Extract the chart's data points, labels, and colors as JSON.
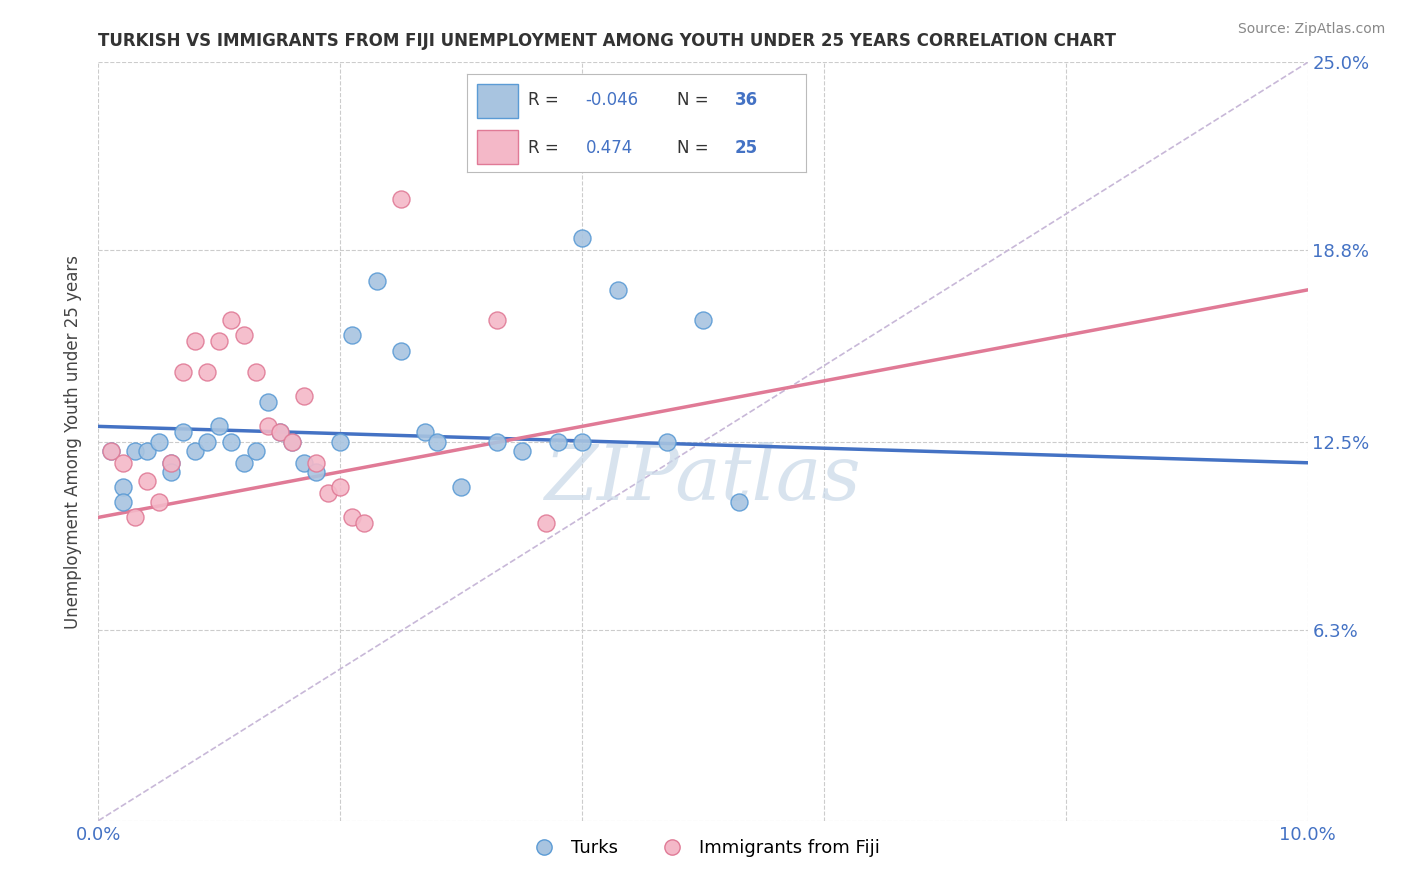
{
  "title": "TURKISH VS IMMIGRANTS FROM FIJI UNEMPLOYMENT AMONG YOUTH UNDER 25 YEARS CORRELATION CHART",
  "source": "Source: ZipAtlas.com",
  "ylabel": "Unemployment Among Youth under 25 years",
  "xlim": [
    0.0,
    0.1
  ],
  "ylim": [
    0.0,
    0.25
  ],
  "xtick_positions": [
    0.0,
    0.02,
    0.04,
    0.06,
    0.08,
    0.1
  ],
  "xtick_labels": [
    "0.0%",
    "",
    "",
    "",
    "",
    "10.0%"
  ],
  "ytick_positions": [
    0.0,
    0.063,
    0.125,
    0.188,
    0.25
  ],
  "ytick_labels": [
    "",
    "6.3%",
    "12.5%",
    "18.8%",
    "25.0%"
  ],
  "turks_R": "-0.046",
  "turks_N": "36",
  "fiji_R": "0.474",
  "fiji_N": "25",
  "turks_color": "#a8c4e0",
  "fiji_color": "#f4b8c8",
  "turks_edge_color": "#5b9bd5",
  "fiji_edge_color": "#e07a96",
  "turks_line_color": "#4472c4",
  "fiji_line_color": "#e07a96",
  "diagonal_color": "#c8b8d8",
  "watermark": "ZIPatlas",
  "turks_scatter": [
    [
      0.001,
      0.122
    ],
    [
      0.002,
      0.11
    ],
    [
      0.002,
      0.105
    ],
    [
      0.003,
      0.122
    ],
    [
      0.004,
      0.122
    ],
    [
      0.005,
      0.125
    ],
    [
      0.006,
      0.118
    ],
    [
      0.006,
      0.115
    ],
    [
      0.007,
      0.128
    ],
    [
      0.008,
      0.122
    ],
    [
      0.009,
      0.125
    ],
    [
      0.01,
      0.13
    ],
    [
      0.011,
      0.125
    ],
    [
      0.012,
      0.118
    ],
    [
      0.013,
      0.122
    ],
    [
      0.014,
      0.138
    ],
    [
      0.015,
      0.128
    ],
    [
      0.016,
      0.125
    ],
    [
      0.017,
      0.118
    ],
    [
      0.018,
      0.115
    ],
    [
      0.02,
      0.125
    ],
    [
      0.021,
      0.16
    ],
    [
      0.023,
      0.178
    ],
    [
      0.025,
      0.155
    ],
    [
      0.027,
      0.128
    ],
    [
      0.028,
      0.125
    ],
    [
      0.03,
      0.11
    ],
    [
      0.033,
      0.125
    ],
    [
      0.035,
      0.122
    ],
    [
      0.038,
      0.125
    ],
    [
      0.04,
      0.125
    ],
    [
      0.04,
      0.192
    ],
    [
      0.043,
      0.175
    ],
    [
      0.047,
      0.125
    ],
    [
      0.05,
      0.165
    ],
    [
      0.053,
      0.105
    ]
  ],
  "fiji_scatter": [
    [
      0.001,
      0.122
    ],
    [
      0.002,
      0.118
    ],
    [
      0.003,
      0.1
    ],
    [
      0.004,
      0.112
    ],
    [
      0.005,
      0.105
    ],
    [
      0.006,
      0.118
    ],
    [
      0.007,
      0.148
    ],
    [
      0.008,
      0.158
    ],
    [
      0.009,
      0.148
    ],
    [
      0.01,
      0.158
    ],
    [
      0.011,
      0.165
    ],
    [
      0.012,
      0.16
    ],
    [
      0.013,
      0.148
    ],
    [
      0.014,
      0.13
    ],
    [
      0.015,
      0.128
    ],
    [
      0.016,
      0.125
    ],
    [
      0.017,
      0.14
    ],
    [
      0.018,
      0.118
    ],
    [
      0.019,
      0.108
    ],
    [
      0.02,
      0.11
    ],
    [
      0.021,
      0.1
    ],
    [
      0.022,
      0.098
    ],
    [
      0.025,
      0.205
    ],
    [
      0.033,
      0.165
    ],
    [
      0.037,
      0.098
    ]
  ],
  "turks_line_x": [
    0.0,
    0.1
  ],
  "turks_line_y": [
    0.13,
    0.118
  ],
  "fiji_line_x": [
    0.0,
    0.1
  ],
  "fiji_line_y": [
    0.1,
    0.175
  ],
  "diag_line_x": [
    0.0,
    0.1
  ],
  "diag_line_y": [
    0.0,
    0.25
  ]
}
